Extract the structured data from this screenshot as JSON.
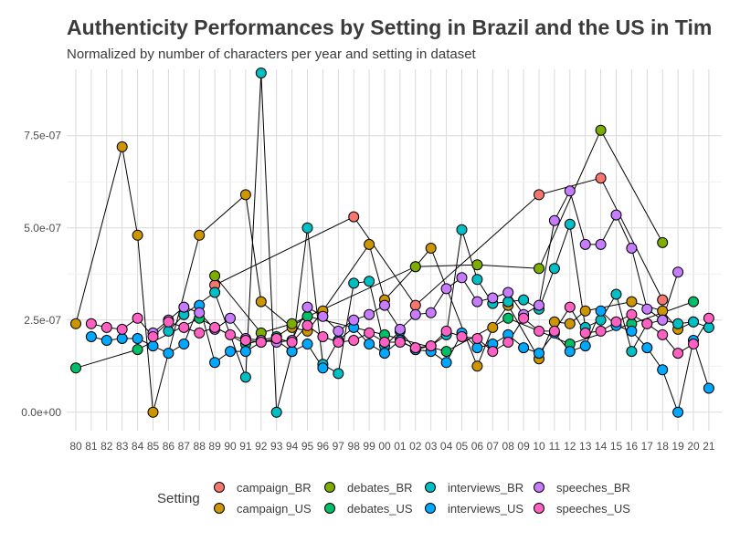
{
  "chart_data": {
    "type": "line",
    "title": "Authenticity Performances by Setting in Brazil and the US in Tim",
    "subtitle": "Normalized by number of characters per year and setting in dataset",
    "xlabel": "",
    "ylabel": "",
    "x": [
      "80",
      "81",
      "82",
      "83",
      "84",
      "85",
      "86",
      "87",
      "88",
      "89",
      "90",
      "91",
      "92",
      "93",
      "94",
      "95",
      "96",
      "97",
      "98",
      "99",
      "00",
      "01",
      "02",
      "03",
      "04",
      "05",
      "06",
      "07",
      "08",
      "09",
      "10",
      "11",
      "12",
      "13",
      "14",
      "15",
      "16",
      "17",
      "18",
      "19",
      "20",
      "21"
    ],
    "ylim": [
      -5e-08,
      9.3e-07
    ],
    "y_ticks": [
      0,
      2.5e-07,
      5e-07,
      7.5e-07
    ],
    "y_tick_labels": [
      "0.0e+00",
      "2.5e-07",
      "5.0e-07",
      "7.5e-07"
    ],
    "grid": true,
    "legend": {
      "title": "Setting",
      "position": "bottom"
    },
    "series": [
      {
        "name": "campaign_BR",
        "color": "#F8766D",
        "points": [
          [
            "89",
            3.45e-07
          ],
          [
            "98",
            5.3e-07
          ],
          [
            "02",
            2.9e-07
          ],
          [
            "10",
            5.9e-07
          ],
          [
            "14",
            6.35e-07
          ],
          [
            "18",
            3.05e-07
          ]
        ]
      },
      {
        "name": "campaign_US",
        "color": "#CD9600",
        "points": [
          [
            "80",
            2.4e-07
          ],
          [
            "83",
            7.2e-07
          ],
          [
            "84",
            4.8e-07
          ],
          [
            "85",
            0.0
          ],
          [
            "88",
            4.8e-07
          ],
          [
            "91",
            5.9e-07
          ],
          [
            "92",
            3e-07
          ],
          [
            "94",
            2.3e-07
          ],
          [
            "95",
            2.2e-07
          ],
          [
            "96",
            2.75e-07
          ],
          [
            "99",
            4.55e-07
          ],
          [
            "00",
            3.05e-07
          ],
          [
            "02",
            3.95e-07
          ],
          [
            "03",
            4.45e-07
          ],
          [
            "06",
            1.25e-07
          ],
          [
            "07",
            2.3e-07
          ],
          [
            "08",
            2.9e-07
          ],
          [
            "10",
            1.45e-07
          ],
          [
            "11",
            2.45e-07
          ],
          [
            "12",
            2.4e-07
          ],
          [
            "13",
            2.75e-07
          ],
          [
            "16",
            3e-07
          ],
          [
            "18",
            2.75e-07
          ],
          [
            "19",
            2.25e-07
          ],
          [
            "20",
            2.45e-07
          ]
        ]
      },
      {
        "name": "debates_BR",
        "color": "#7CAE00",
        "points": [
          [
            "89",
            3.7e-07
          ],
          [
            "92",
            2.15e-07
          ],
          [
            "94",
            2.4e-07
          ],
          [
            "02",
            3.95e-07
          ],
          [
            "06",
            4e-07
          ],
          [
            "10",
            3.9e-07
          ],
          [
            "14",
            7.65e-07
          ],
          [
            "18",
            4.6e-07
          ]
        ]
      },
      {
        "name": "debates_US",
        "color": "#00BE67",
        "points": [
          [
            "80",
            1.2e-07
          ],
          [
            "84",
            1.7e-07
          ],
          [
            "88",
            2.55e-07
          ],
          [
            "91",
            1.85e-07
          ],
          [
            "93",
            2.05e-07
          ],
          [
            "95",
            2.6e-07
          ],
          [
            "00",
            2.1e-07
          ],
          [
            "04",
            1.65e-07
          ],
          [
            "08",
            2.55e-07
          ],
          [
            "12",
            1.85e-07
          ],
          [
            "16",
            2.4e-07
          ],
          [
            "20",
            3e-07
          ]
        ]
      },
      {
        "name": "interviews_BR",
        "color": "#00BFC4",
        "points": [
          [
            "86",
            2.2e-07
          ],
          [
            "87",
            2.65e-07
          ],
          [
            "89",
            3.25e-07
          ],
          [
            "91",
            9.5e-08
          ],
          [
            "92",
            9.2e-07
          ],
          [
            "93",
            0.0
          ],
          [
            "94",
            1.65e-07
          ],
          [
            "95",
            5e-07
          ],
          [
            "96",
            1.3e-07
          ],
          [
            "97",
            1.05e-07
          ],
          [
            "98",
            3.5e-07
          ],
          [
            "99",
            3.55e-07
          ],
          [
            "00",
            1.8e-07
          ],
          [
            "01",
            2.2e-07
          ],
          [
            "02",
            1.7e-07
          ],
          [
            "03",
            1.8e-07
          ],
          [
            "04",
            2.1e-07
          ],
          [
            "05",
            4.95e-07
          ],
          [
            "06",
            3.6e-07
          ],
          [
            "07",
            2.95e-07
          ],
          [
            "08",
            3e-07
          ],
          [
            "09",
            3.05e-07
          ],
          [
            "10",
            2.8e-07
          ],
          [
            "11",
            3.9e-07
          ],
          [
            "12",
            5.1e-07
          ],
          [
            "13",
            2.3e-07
          ],
          [
            "14",
            2.5e-07
          ],
          [
            "15",
            3.2e-07
          ],
          [
            "16",
            1.65e-07
          ],
          [
            "17",
            2.4e-07
          ],
          [
            "18",
            2.5e-07
          ],
          [
            "19",
            2.4e-07
          ],
          [
            "20",
            2.45e-07
          ],
          [
            "21",
            2.3e-07
          ]
        ]
      },
      {
        "name": "interviews_US",
        "color": "#00A9FF",
        "points": [
          [
            "81",
            2.05e-07
          ],
          [
            "82",
            1.95e-07
          ],
          [
            "83",
            2e-07
          ],
          [
            "84",
            2e-07
          ],
          [
            "85",
            1.8e-07
          ],
          [
            "86",
            1.6e-07
          ],
          [
            "87",
            1.85e-07
          ],
          [
            "88",
            2.9e-07
          ],
          [
            "89",
            1.35e-07
          ],
          [
            "90",
            1.65e-07
          ],
          [
            "91",
            1.65e-07
          ],
          [
            "92",
            1.9e-07
          ],
          [
            "93",
            1.95e-07
          ],
          [
            "94",
            1.65e-07
          ],
          [
            "95",
            1.85e-07
          ],
          [
            "96",
            1.2e-07
          ],
          [
            "97",
            1.95e-07
          ],
          [
            "98",
            2.3e-07
          ],
          [
            "99",
            1.85e-07
          ],
          [
            "00",
            1.6e-07
          ],
          [
            "01",
            1.95e-07
          ],
          [
            "02",
            1.7e-07
          ],
          [
            "03",
            1.65e-07
          ],
          [
            "04",
            1.35e-07
          ],
          [
            "05",
            2.15e-07
          ],
          [
            "06",
            1.75e-07
          ],
          [
            "07",
            1.85e-07
          ],
          [
            "08",
            2.1e-07
          ],
          [
            "09",
            1.75e-07
          ],
          [
            "10",
            1.6e-07
          ],
          [
            "11",
            2.15e-07
          ],
          [
            "12",
            1.65e-07
          ],
          [
            "13",
            1.8e-07
          ],
          [
            "14",
            2.75e-07
          ],
          [
            "15",
            2.35e-07
          ],
          [
            "16",
            2.2e-07
          ],
          [
            "17",
            1.75e-07
          ],
          [
            "18",
            1.15e-07
          ],
          [
            "19",
            0.0
          ],
          [
            "20",
            1.95e-07
          ],
          [
            "21",
            6.5e-08
          ]
        ]
      },
      {
        "name": "speeches_BR",
        "color": "#C77CFF",
        "points": [
          [
            "85",
            2.15e-07
          ],
          [
            "86",
            2.5e-07
          ],
          [
            "87",
            2.85e-07
          ],
          [
            "88",
            2.7e-07
          ],
          [
            "89",
            2.25e-07
          ],
          [
            "90",
            2.55e-07
          ],
          [
            "91",
            2e-07
          ],
          [
            "92",
            1.95e-07
          ],
          [
            "93",
            1.9e-07
          ],
          [
            "94",
            1.95e-07
          ],
          [
            "95",
            2.85e-07
          ],
          [
            "96",
            2.6e-07
          ],
          [
            "97",
            2.2e-07
          ],
          [
            "98",
            2.5e-07
          ],
          [
            "99",
            2.65e-07
          ],
          [
            "00",
            2.9e-07
          ],
          [
            "01",
            2.25e-07
          ],
          [
            "02",
            2.65e-07
          ],
          [
            "03",
            2.7e-07
          ],
          [
            "04",
            3.35e-07
          ],
          [
            "05",
            3.65e-07
          ],
          [
            "06",
            3e-07
          ],
          [
            "07",
            3.1e-07
          ],
          [
            "08",
            3.25e-07
          ],
          [
            "09",
            2.65e-07
          ],
          [
            "10",
            2.9e-07
          ],
          [
            "11",
            5.2e-07
          ],
          [
            "12",
            6e-07
          ],
          [
            "13",
            4.55e-07
          ],
          [
            "14",
            4.55e-07
          ],
          [
            "15",
            5.35e-07
          ],
          [
            "16",
            4.45e-07
          ],
          [
            "17",
            2.8e-07
          ],
          [
            "18",
            2.5e-07
          ],
          [
            "19",
            3.8e-07
          ]
        ]
      },
      {
        "name": "speeches_US",
        "color": "#FF61C3",
        "points": [
          [
            "81",
            2.4e-07
          ],
          [
            "82",
            2.3e-07
          ],
          [
            "83",
            2.25e-07
          ],
          [
            "84",
            2.55e-07
          ],
          [
            "85",
            2.05e-07
          ],
          [
            "86",
            2.45e-07
          ],
          [
            "87",
            2.3e-07
          ],
          [
            "88",
            2.15e-07
          ],
          [
            "89",
            2.3e-07
          ],
          [
            "90",
            2.1e-07
          ],
          [
            "91",
            1.95e-07
          ],
          [
            "92",
            1.9e-07
          ],
          [
            "93",
            2e-07
          ],
          [
            "94",
            1.9e-07
          ],
          [
            "95",
            2.35e-07
          ],
          [
            "96",
            2.05e-07
          ],
          [
            "97",
            1.9e-07
          ],
          [
            "98",
            1.95e-07
          ],
          [
            "99",
            2.15e-07
          ],
          [
            "00",
            1.9e-07
          ],
          [
            "01",
            1.9e-07
          ],
          [
            "02",
            1.75e-07
          ],
          [
            "03",
            1.8e-07
          ],
          [
            "04",
            2.2e-07
          ],
          [
            "05",
            2.05e-07
          ],
          [
            "06",
            2e-07
          ],
          [
            "07",
            1.65e-07
          ],
          [
            "08",
            1.9e-07
          ],
          [
            "09",
            2.55e-07
          ],
          [
            "10",
            2.2e-07
          ],
          [
            "11",
            2.2e-07
          ],
          [
            "12",
            2.85e-07
          ],
          [
            "13",
            2.15e-07
          ],
          [
            "14",
            2.2e-07
          ],
          [
            "15",
            2.45e-07
          ],
          [
            "16",
            2.65e-07
          ],
          [
            "17",
            2.4e-07
          ],
          [
            "18",
            2.1e-07
          ],
          [
            "19",
            1.6e-07
          ],
          [
            "20",
            1.85e-07
          ],
          [
            "21",
            2.55e-07
          ]
        ]
      }
    ]
  }
}
